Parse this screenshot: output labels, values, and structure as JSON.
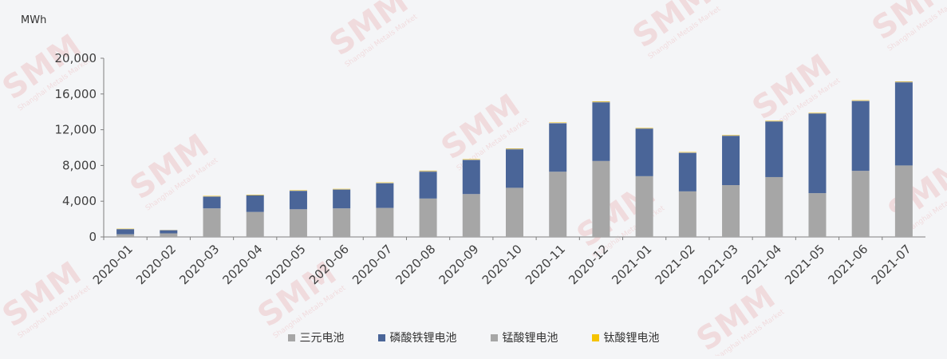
{
  "chart_data": {
    "type": "bar",
    "stacked": true,
    "unit_label": "MWh",
    "title": "",
    "xlabel": "",
    "ylabel": "",
    "ylim": [
      0,
      20000
    ],
    "yticks": [
      "0",
      "4,000",
      "8,000",
      "12,000",
      "16,000",
      "20,000"
    ],
    "grid": false,
    "legend_position": "bottom",
    "categories": [
      "2020-01",
      "2020-02",
      "2020-03",
      "2020-04",
      "2020-05",
      "2020-06",
      "2020-07",
      "2020-08",
      "2020-09",
      "2020-10",
      "2020-11",
      "2020-12",
      "2021-01",
      "2021-02",
      "2021-03",
      "2021-04",
      "2021-05",
      "2021-06",
      "2021-07"
    ],
    "series": [
      {
        "name": "三元电池",
        "color": "#a6a6a6",
        "values": [
          300,
          400,
          3200,
          2800,
          3100,
          3200,
          3250,
          4300,
          4800,
          5500,
          7300,
          8500,
          6800,
          5100,
          5800,
          6700,
          4900,
          7400,
          8000
        ]
      },
      {
        "name": "磷酸铁锂电池",
        "color": "#4a6598",
        "values": [
          550,
          350,
          1300,
          1850,
          2050,
          2100,
          2750,
          3000,
          3800,
          4300,
          5400,
          6550,
          5300,
          4300,
          5500,
          6200,
          8900,
          7800,
          9300
        ]
      },
      {
        "name": "锰酸锂电池",
        "color": "#a6a6a6",
        "values": [
          40,
          20,
          50,
          40,
          40,
          40,
          60,
          80,
          60,
          70,
          70,
          80,
          70,
          60,
          70,
          70,
          60,
          60,
          70
        ]
      },
      {
        "name": "钛酸锂电池",
        "color": "#f5c300",
        "values": [
          30,
          10,
          40,
          40,
          40,
          40,
          40,
          40,
          40,
          40,
          40,
          50,
          40,
          40,
          40,
          40,
          40,
          40,
          40
        ]
      }
    ]
  },
  "watermark": {
    "text": "SMM",
    "subtext": "Shanghai Metals Market"
  }
}
